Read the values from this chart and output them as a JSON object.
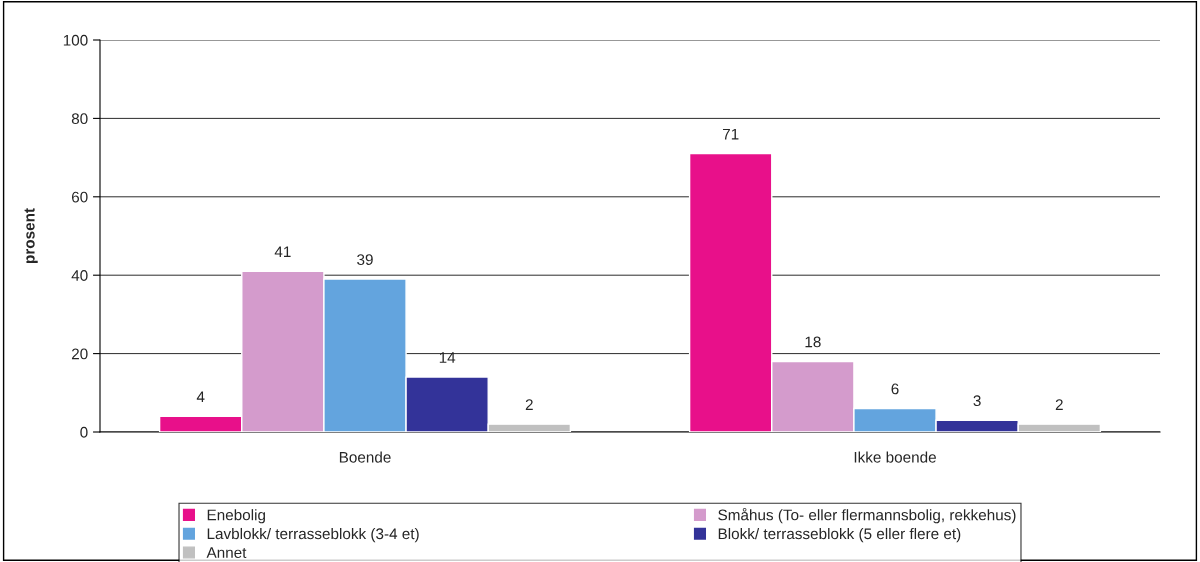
{
  "chart_data": {
    "type": "bar",
    "ylabel": "prosent",
    "categories": [
      "Boende",
      "Ikke boende"
    ],
    "series": [
      {
        "name": "Enebolig",
        "color": "#e8108a",
        "values": [
          4,
          71
        ]
      },
      {
        "name": "Småhus (To- eller flermannsbolig, rekkehus)",
        "color": "#d49bcc",
        "values": [
          41,
          18
        ]
      },
      {
        "name": "Lavblokk/ terrasseblokk (3-4 et)",
        "color": "#63a4de",
        "values": [
          39,
          6
        ]
      },
      {
        "name": "Blokk/ terrasseblokk (5 eller flere et)",
        "color": "#333399",
        "values": [
          14,
          3
        ]
      },
      {
        "name": "Annet",
        "color": "#c0c0c0",
        "values": [
          2,
          2
        ]
      }
    ],
    "ylim": [
      0,
      100
    ],
    "yticks": [
      0,
      20,
      40,
      60,
      80,
      100
    ],
    "grid": "y",
    "legend": "bottom",
    "data_labels": true
  }
}
